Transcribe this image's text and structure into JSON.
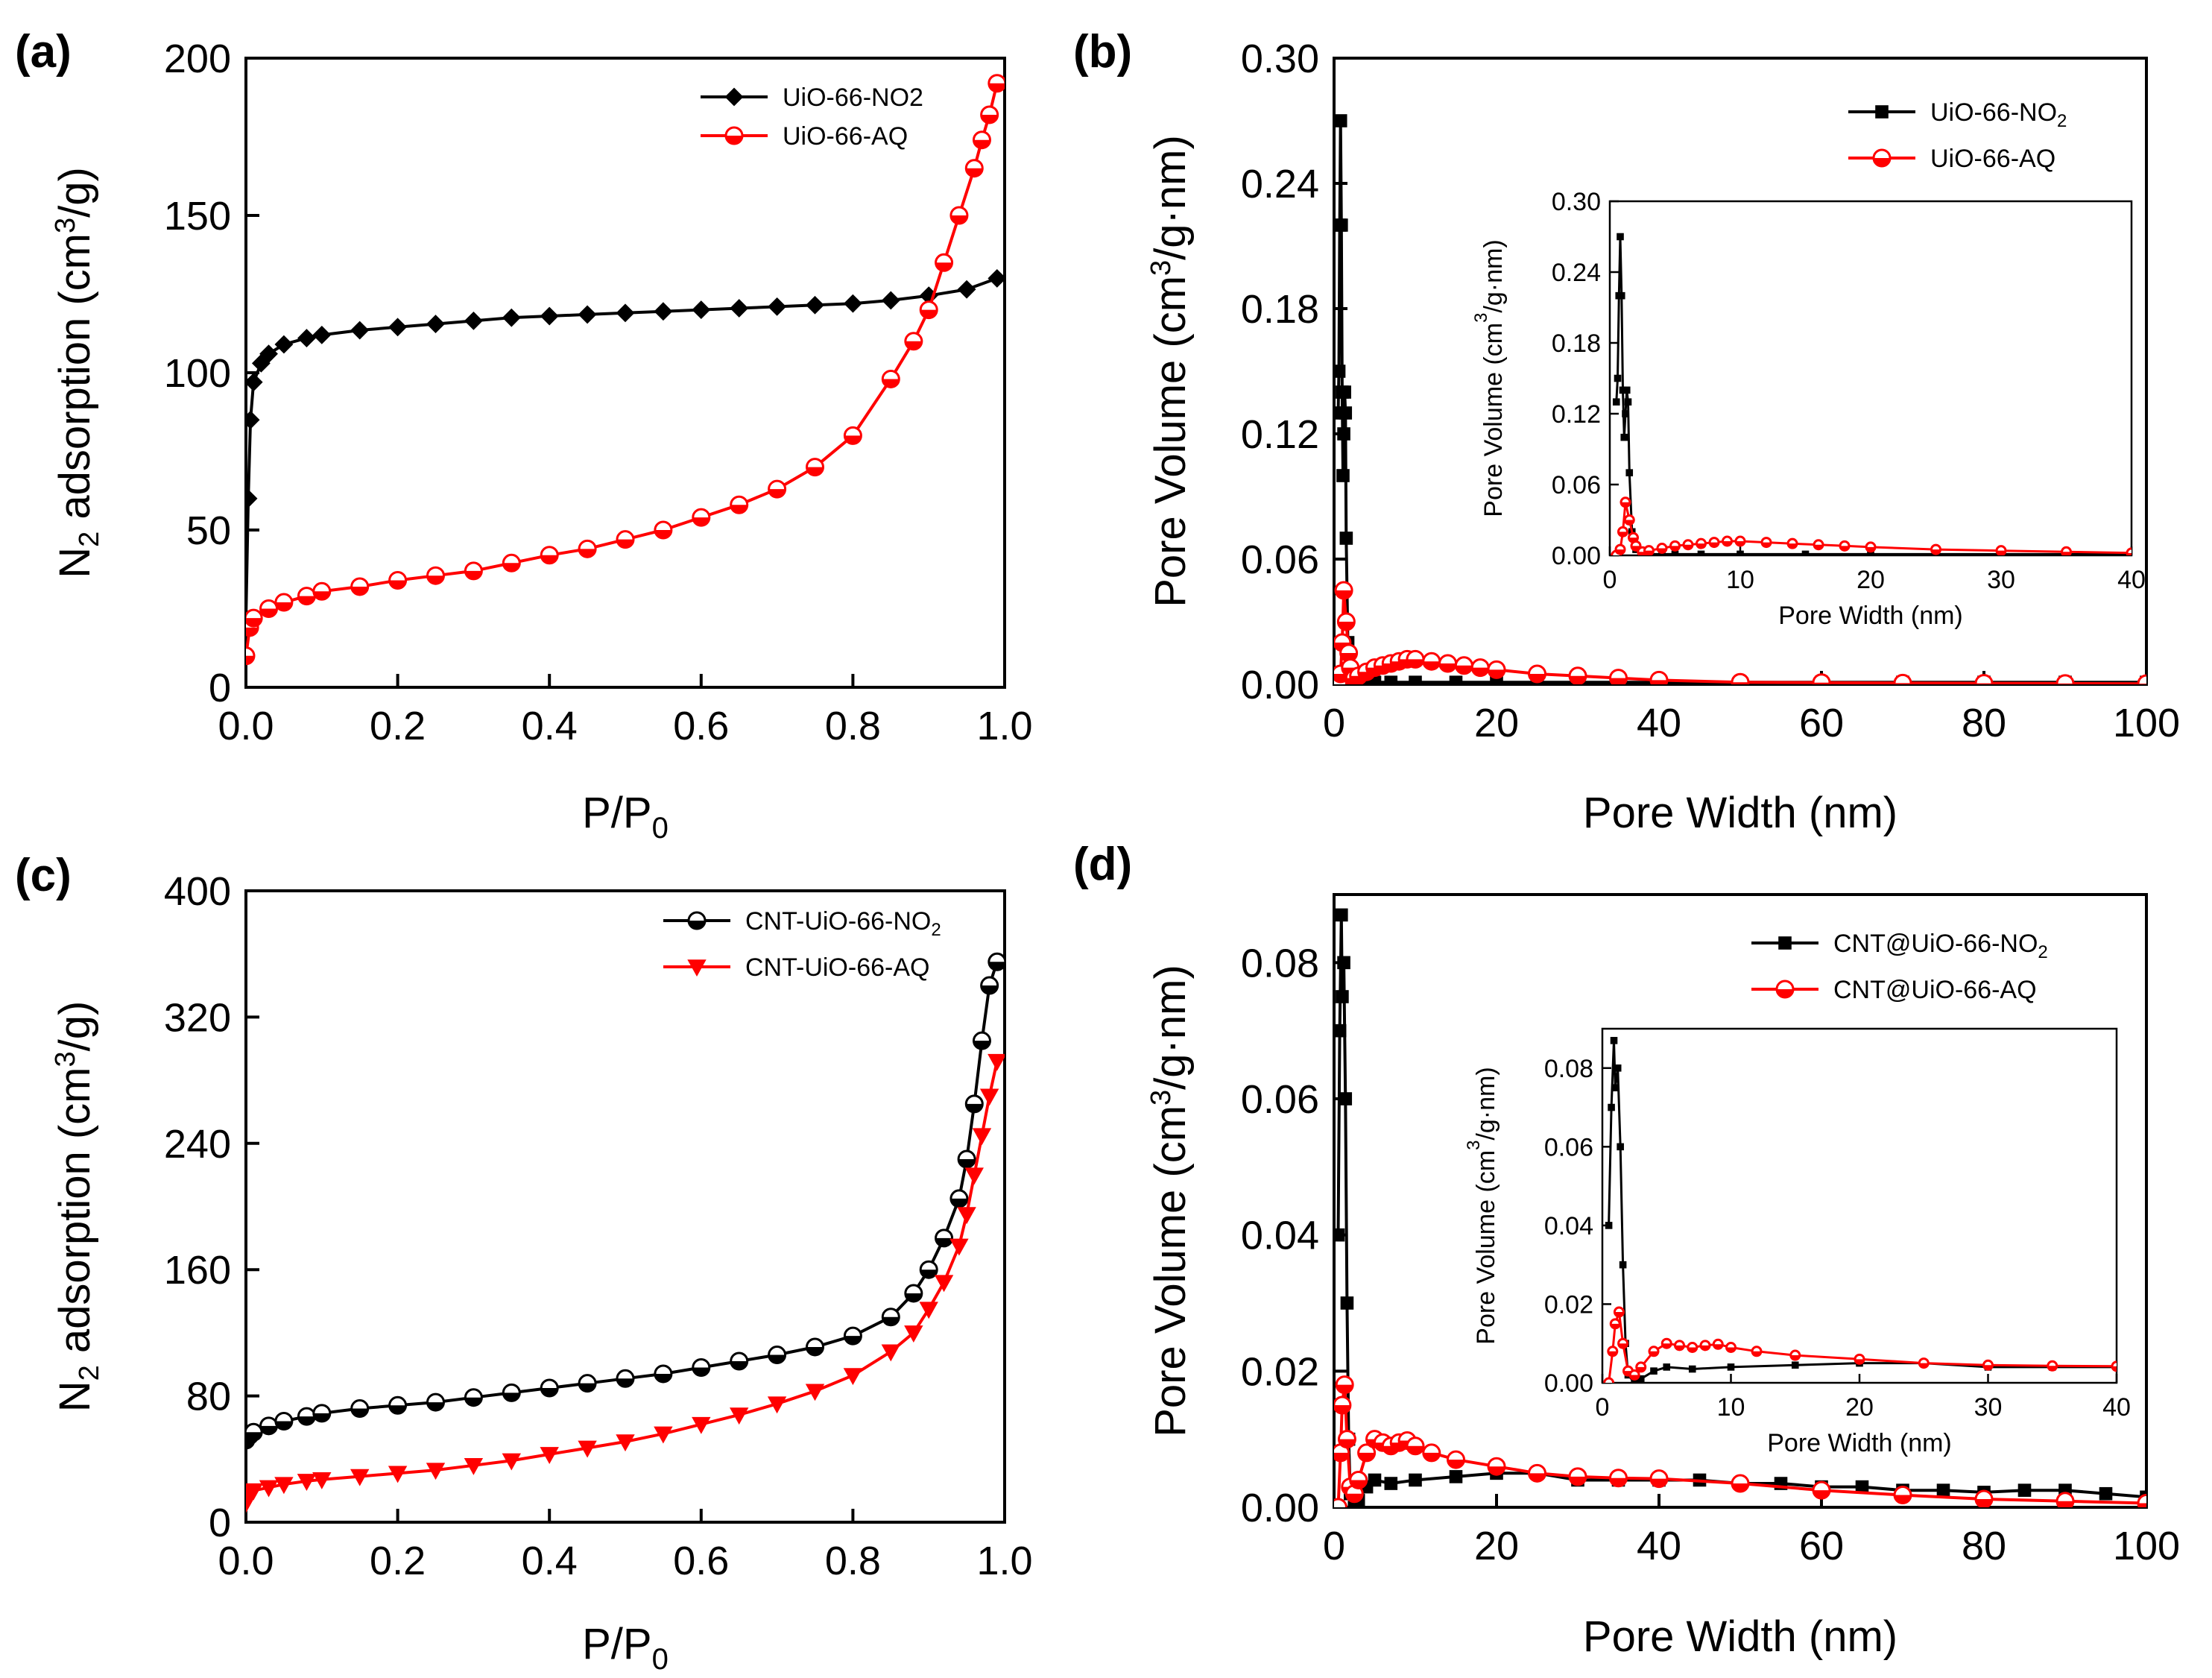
{
  "figure": {
    "panels": [
      "(a)",
      "(b)",
      "(c)",
      "(d)"
    ]
  },
  "chart_data": [
    {
      "id": "a",
      "type": "line",
      "panel_label": "(a)",
      "xlabel": "P/P",
      "xlabel_sub": "0",
      "ylabel_pre": "N",
      "ylabel_sub": "2",
      "ylabel_mid": " adsorption (cm",
      "ylabel_sup": "3",
      "ylabel_post": "/g)",
      "xlim": [
        0,
        1.0
      ],
      "ylim": [
        0,
        200
      ],
      "xticks": [
        "0.0",
        "0.2",
        "0.4",
        "0.6",
        "0.8",
        "1.0"
      ],
      "xtick_values": [
        0,
        0.2,
        0.4,
        0.6,
        0.8,
        1.0
      ],
      "yticks": [
        "0",
        "50",
        "100",
        "150",
        "200"
      ],
      "ytick_values": [
        0,
        50,
        100,
        150,
        200
      ],
      "legend": "top-right",
      "series": [
        {
          "name": "UiO-66-NO2",
          "color": "#000000",
          "marker": "diamond",
          "x": [
            0.0,
            0.003,
            0.006,
            0.01,
            0.02,
            0.03,
            0.05,
            0.08,
            0.1,
            0.15,
            0.2,
            0.25,
            0.3,
            0.35,
            0.4,
            0.45,
            0.5,
            0.55,
            0.6,
            0.65,
            0.7,
            0.75,
            0.8,
            0.85,
            0.9,
            0.95,
            0.99
          ],
          "y": [
            22,
            60,
            85,
            97,
            103,
            106,
            109,
            111,
            112,
            113.5,
            114.5,
            115.5,
            116.5,
            117.5,
            118,
            118.5,
            119,
            119.5,
            120,
            120.5,
            121,
            121.5,
            122,
            123,
            124.5,
            126.5,
            130
          ]
        },
        {
          "name": "UiO-66-AQ",
          "color": "#ff0000",
          "marker": "circle",
          "x": [
            0.0,
            0.005,
            0.01,
            0.03,
            0.05,
            0.08,
            0.1,
            0.15,
            0.2,
            0.25,
            0.3,
            0.35,
            0.4,
            0.45,
            0.5,
            0.55,
            0.6,
            0.65,
            0.7,
            0.75,
            0.8,
            0.85,
            0.88,
            0.9,
            0.92,
            0.94,
            0.96,
            0.97,
            0.98,
            0.99
          ],
          "y": [
            10,
            19,
            22,
            25,
            27,
            29,
            30.5,
            32,
            34,
            35.5,
            37,
            39.5,
            42,
            44,
            47,
            50,
            54,
            58,
            63,
            70,
            80,
            98,
            110,
            120,
            135,
            150,
            165,
            174,
            182,
            192
          ]
        }
      ]
    },
    {
      "id": "b",
      "type": "line",
      "panel_label": "(b)",
      "xlabel": "Pore Width (nm)",
      "ylabel_pre": "Pore Volume (cm",
      "ylabel_sup": "3",
      "ylabel_post": "/g·nm)",
      "xlim": [
        0,
        100
      ],
      "ylim": [
        0,
        0.3
      ],
      "xticks": [
        "0",
        "20",
        "40",
        "60",
        "80",
        "100"
      ],
      "xtick_values": [
        0,
        20,
        40,
        60,
        80,
        100
      ],
      "yticks": [
        "0.00",
        "0.06",
        "0.12",
        "0.18",
        "0.24",
        "0.30"
      ],
      "ytick_values": [
        0,
        0.06,
        0.12,
        0.18,
        0.24,
        0.3
      ],
      "legend": "top-right",
      "series": [
        {
          "name_pre": "UiO-66-NO",
          "name_sub": "2",
          "color": "#000000",
          "marker": "square",
          "x": [
            0.5,
            0.6,
            0.7,
            0.8,
            0.9,
            1.0,
            1.1,
            1.2,
            1.3,
            1.4,
            1.5,
            1.7,
            2.0,
            2.5,
            3,
            4,
            5,
            7,
            10,
            15,
            20,
            25,
            30,
            40,
            50,
            60,
            70,
            80,
            90,
            100
          ],
          "y": [
            0.13,
            0.15,
            0.22,
            0.27,
            0.22,
            0.14,
            0.1,
            0.12,
            0.14,
            0.13,
            0.07,
            0.02,
            0.005,
            0.002,
            0.001,
            0.001,
            0.001,
            0.001,
            0.001,
            0.001,
            0.001,
            0.001,
            0.001,
            0.001,
            0.001,
            0.001,
            0.001,
            0.001,
            0.001,
            0.001
          ]
        },
        {
          "name": "UiO-66-AQ",
          "color": "#ff0000",
          "marker": "circle",
          "x": [
            0.5,
            0.8,
            1.0,
            1.2,
            1.5,
            1.8,
            2.0,
            2.5,
            3,
            4,
            5,
            6,
            7,
            8,
            9,
            10,
            12,
            14,
            16,
            18,
            20,
            25,
            30,
            35,
            40,
            50,
            60,
            70,
            80,
            90,
            100
          ],
          "y": [
            0.0,
            0.005,
            0.02,
            0.045,
            0.03,
            0.015,
            0.008,
            0.003,
            0.004,
            0.006,
            0.008,
            0.009,
            0.01,
            0.011,
            0.012,
            0.012,
            0.011,
            0.01,
            0.009,
            0.008,
            0.007,
            0.005,
            0.004,
            0.003,
            0.002,
            0.001,
            0.0008,
            0.0006,
            0.0005,
            0.0004,
            0.0003
          ]
        }
      ],
      "inset": {
        "xlabel": "Pore Width (nm)",
        "ylabel_pre": "Pore Volume (cm",
        "ylabel_sup": "3",
        "ylabel_post": "/g·nm)",
        "xlim": [
          0,
          40
        ],
        "ylim": [
          0,
          0.3
        ],
        "xticks": [
          "0",
          "10",
          "20",
          "30",
          "40"
        ],
        "xtick_values": [
          0,
          10,
          20,
          30,
          40
        ],
        "yticks": [
          "0.00",
          "0.06",
          "0.12",
          "0.18",
          "0.24",
          "0.30"
        ],
        "ytick_values": [
          0,
          0.06,
          0.12,
          0.18,
          0.24,
          0.3
        ]
      }
    },
    {
      "id": "c",
      "type": "line",
      "panel_label": "(c)",
      "xlabel": "P/P",
      "xlabel_sub": "0",
      "ylabel_pre": "N",
      "ylabel_sub": "2",
      "ylabel_mid": " adsorption (cm",
      "ylabel_sup": "3",
      "ylabel_post": "/g)",
      "xlim": [
        0,
        1.0
      ],
      "ylim": [
        0,
        400
      ],
      "xticks": [
        "0.0",
        "0.2",
        "0.4",
        "0.6",
        "0.8",
        "1.0"
      ],
      "xtick_values": [
        0,
        0.2,
        0.4,
        0.6,
        0.8,
        1.0
      ],
      "yticks": [
        "0",
        "80",
        "160",
        "240",
        "320",
        "400"
      ],
      "ytick_values": [
        0,
        80,
        160,
        240,
        320,
        400
      ],
      "legend": "top-right",
      "series": [
        {
          "name_pre": "CNT-UiO-66-NO",
          "name_sub": "2",
          "color": "#000000",
          "marker": "circle",
          "x": [
            0.0,
            0.005,
            0.01,
            0.03,
            0.05,
            0.08,
            0.1,
            0.15,
            0.2,
            0.25,
            0.3,
            0.35,
            0.4,
            0.45,
            0.5,
            0.55,
            0.6,
            0.65,
            0.7,
            0.75,
            0.8,
            0.85,
            0.88,
            0.9,
            0.92,
            0.94,
            0.95,
            0.96,
            0.97,
            0.98,
            0.99
          ],
          "y": [
            52,
            55,
            57,
            61,
            64,
            67,
            69,
            72,
            74,
            76,
            79,
            82,
            85,
            88,
            91,
            94,
            98,
            102,
            106,
            111,
            118,
            130,
            145,
            160,
            180,
            205,
            230,
            265,
            305,
            340,
            355
          ]
        },
        {
          "name": "CNT-UiO-66-AQ",
          "color": "#ff0000",
          "marker": "triangle",
          "x": [
            0.0,
            0.005,
            0.01,
            0.03,
            0.05,
            0.08,
            0.1,
            0.15,
            0.2,
            0.25,
            0.3,
            0.35,
            0.4,
            0.45,
            0.5,
            0.55,
            0.6,
            0.65,
            0.7,
            0.75,
            0.8,
            0.85,
            0.88,
            0.9,
            0.92,
            0.94,
            0.95,
            0.96,
            0.97,
            0.98,
            0.99
          ],
          "y": [
            12,
            18,
            20,
            22,
            24,
            26,
            27,
            29,
            31,
            33,
            36,
            39,
            43,
            47,
            51,
            56,
            62,
            68,
            75,
            83,
            93,
            108,
            120,
            135,
            152,
            175,
            195,
            220,
            245,
            270,
            292
          ]
        }
      ]
    },
    {
      "id": "d",
      "type": "line",
      "panel_label": "(d)",
      "xlabel": "Pore Width (nm)",
      "ylabel_pre": "Pore Volume (cm",
      "ylabel_sup": "3",
      "ylabel_post": "/g·nm)",
      "xlim": [
        0,
        100
      ],
      "ylim": [
        0,
        0.09
      ],
      "xticks": [
        "0",
        "20",
        "40",
        "60",
        "80",
        "100"
      ],
      "xtick_values": [
        0,
        20,
        40,
        60,
        80,
        100
      ],
      "yticks": [
        "0.00",
        "0.02",
        "0.04",
        "0.06",
        "0.08"
      ],
      "ytick_values": [
        0,
        0.02,
        0.04,
        0.06,
        0.08
      ],
      "legend": "top-right",
      "series": [
        {
          "name_pre": "CNT@UiO-66-NO",
          "name_sub": "2",
          "color": "#000000",
          "marker": "square",
          "x": [
            0.5,
            0.7,
            0.9,
            1.0,
            1.2,
            1.4,
            1.6,
            1.8,
            2.0,
            2.5,
            3,
            4,
            5,
            7,
            10,
            15,
            20,
            25,
            30,
            35,
            40,
            45,
            50,
            55,
            60,
            65,
            70,
            75,
            80,
            85,
            90,
            95,
            100
          ],
          "y": [
            0.04,
            0.07,
            0.087,
            0.075,
            0.08,
            0.06,
            0.03,
            0.01,
            0.002,
            0.0,
            0.001,
            0.003,
            0.004,
            0.0035,
            0.004,
            0.0045,
            0.005,
            0.005,
            0.004,
            0.004,
            0.004,
            0.004,
            0.0035,
            0.0035,
            0.003,
            0.003,
            0.0025,
            0.0025,
            0.0022,
            0.0025,
            0.0025,
            0.002,
            0.0015
          ]
        },
        {
          "name": "CNT@UiO-66-AQ",
          "color": "#ff0000",
          "marker": "circle",
          "x": [
            0.5,
            0.8,
            1.0,
            1.3,
            1.6,
            2.0,
            2.5,
            3,
            4,
            5,
            6,
            7,
            8,
            9,
            10,
            12,
            15,
            20,
            25,
            30,
            35,
            40,
            50,
            60,
            70,
            80,
            90,
            100
          ],
          "y": [
            0.0,
            0.008,
            0.015,
            0.018,
            0.01,
            0.003,
            0.002,
            0.004,
            0.008,
            0.01,
            0.0095,
            0.009,
            0.0095,
            0.0098,
            0.009,
            0.008,
            0.007,
            0.006,
            0.005,
            0.0045,
            0.0043,
            0.0042,
            0.0035,
            0.0025,
            0.0018,
            0.0012,
            0.0009,
            0.0006
          ]
        }
      ],
      "inset": {
        "xlabel": "Pore Width (nm)",
        "ylabel_pre": "Pore Volume (cm",
        "ylabel_sup": "3",
        "ylabel_post": "/g·nm)",
        "xlim": [
          0,
          40
        ],
        "ylim": [
          0,
          0.09
        ],
        "xticks": [
          "0",
          "10",
          "20",
          "30",
          "40"
        ],
        "xtick_values": [
          0,
          10,
          20,
          30,
          40
        ],
        "yticks": [
          "0.00",
          "0.02",
          "0.04",
          "0.06",
          "0.08"
        ],
        "ytick_values": [
          0,
          0.02,
          0.04,
          0.06,
          0.08
        ]
      }
    }
  ]
}
